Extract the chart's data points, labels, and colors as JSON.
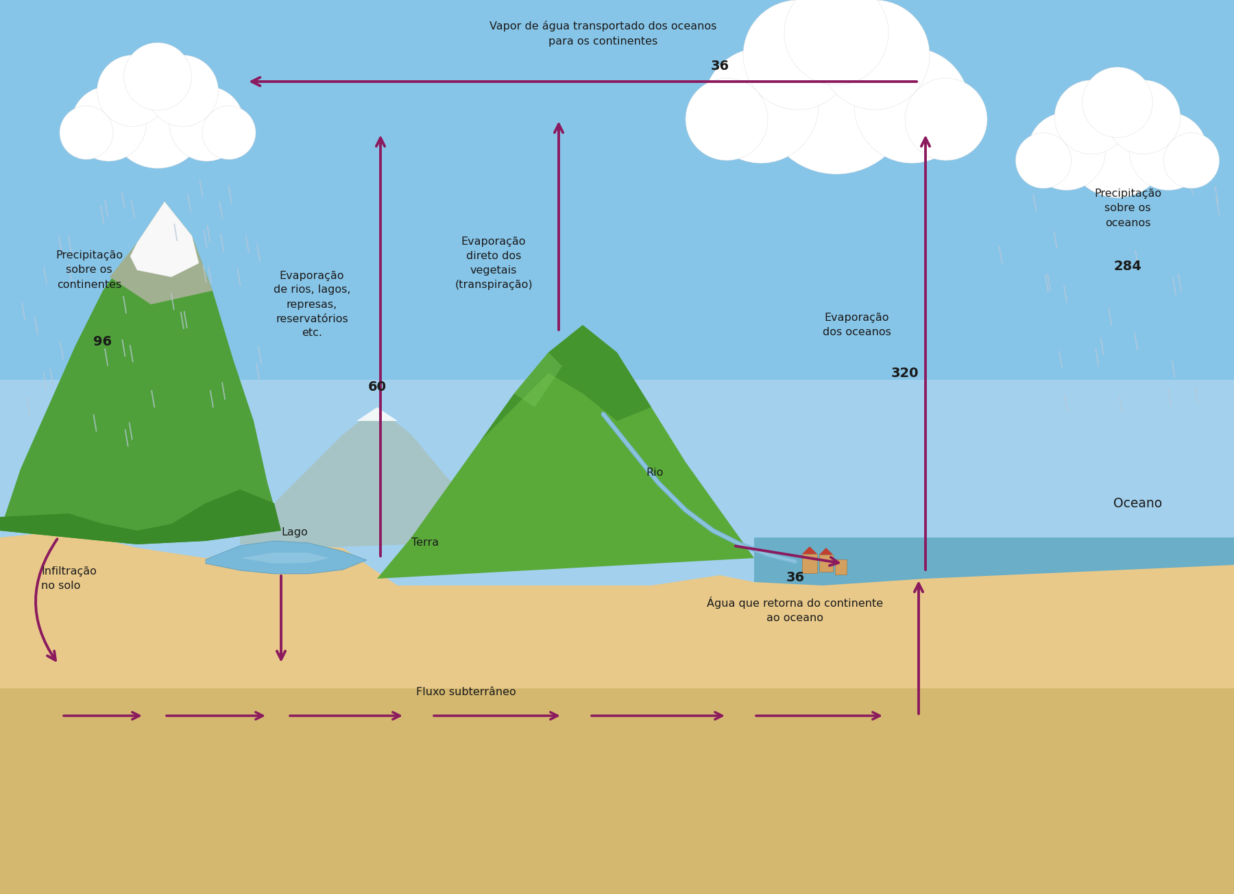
{
  "arrow_color": "#8b1a5e",
  "text_color": "#1a1a1a",
  "label_precipitacao_continentes": "Precipitação\nsobre os\ncontinentes",
  "value_precipitacao_continentes": "96",
  "label_evaporacao_rios": "Evaporação\nde rios, lagos,\nrepresas,\nreservatórios\netc.",
  "value_evaporacao_rios": "60",
  "label_evaporacao_vegetais": "Evaporação\ndireto dos\nvegetais\n(transpiração)",
  "label_evaporacao_oceanos": "Evaporação\ndos oceanos",
  "value_evaporacao_oceanos": "320",
  "label_precipitacao_oceanos": "Precipitação\nsobre os\noceanos",
  "value_precipitacao_oceanos": "284",
  "label_vapor_transportado": "Vapor de água transportado dos oceanos\npara os continentes",
  "value_vapor_transportado": "36",
  "label_agua_retorna": "Água que retorna do continente\nao oceano",
  "value_agua_retorna": "36",
  "label_infiltracao": "Infiltração\nno solo",
  "label_fluxo": "Fluxo subterrâneo",
  "label_lago": "Lago",
  "label_terra": "Terra",
  "label_rio": "Rio",
  "label_oceano": "Oceano",
  "sky_color": "#87c5e8",
  "sky_horizon": "#c5dff5",
  "ocean_color": "#6aaec8",
  "ground_color": "#e8c98a",
  "underground_color": "#d4b870",
  "water_color": "#78b8d8",
  "rain_color": "#b8c8d8",
  "cloud_color": "#ffffff",
  "mountain_green_dark": "#3a8a2a",
  "mountain_green_mid": "#4fa03a",
  "mountain_green_light": "#68b84e",
  "mountain_rock": "#a0b090",
  "mountain_snow": "#f8f8f8",
  "river_color": "#78b8d8"
}
